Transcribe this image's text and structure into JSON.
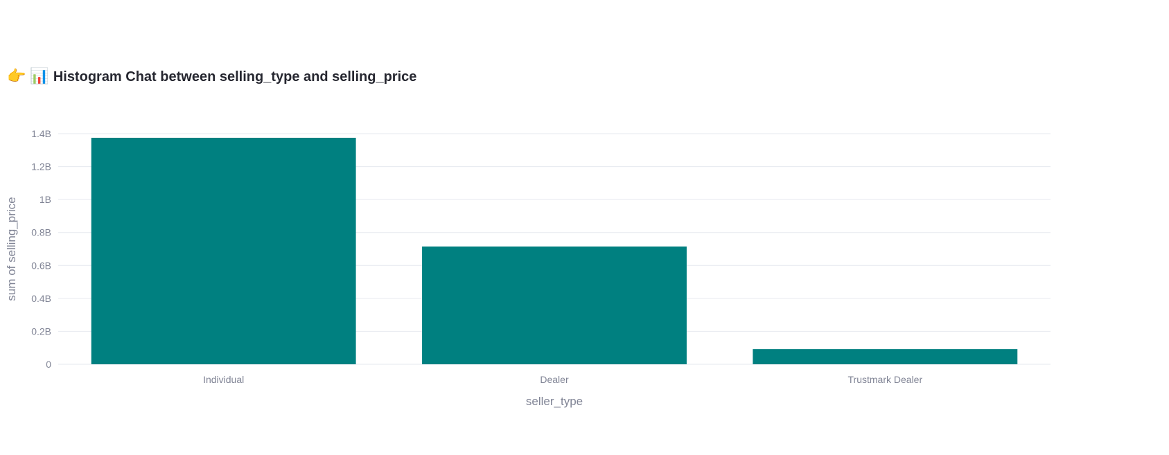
{
  "header": {
    "pointer_icon": "👉",
    "chart_icon": "📊",
    "title": "Histogram Chat between selling_type and selling_price"
  },
  "colors": {
    "bar": "#008080",
    "grid": "#e6e9ef",
    "tick_text": "#808495",
    "axis_title": "#808495",
    "title_text": "#262730"
  },
  "chart_data": {
    "type": "bar",
    "categories": [
      "Individual",
      "Dealer",
      "Trustmark Dealer"
    ],
    "values": [
      1375000000,
      715000000,
      92000000
    ],
    "title": "",
    "xlabel": "seller_type",
    "ylabel": "sum of selling_price",
    "ylim": [
      0,
      1400000000
    ],
    "yticks": [
      0,
      200000000,
      400000000,
      600000000,
      800000000,
      1000000000,
      1200000000,
      1400000000
    ],
    "ytick_labels": [
      "0",
      "0.2B",
      "0.4B",
      "0.6B",
      "0.8B",
      "1B",
      "1.2B",
      "1.4B"
    ],
    "grid": true,
    "legend": "none"
  }
}
